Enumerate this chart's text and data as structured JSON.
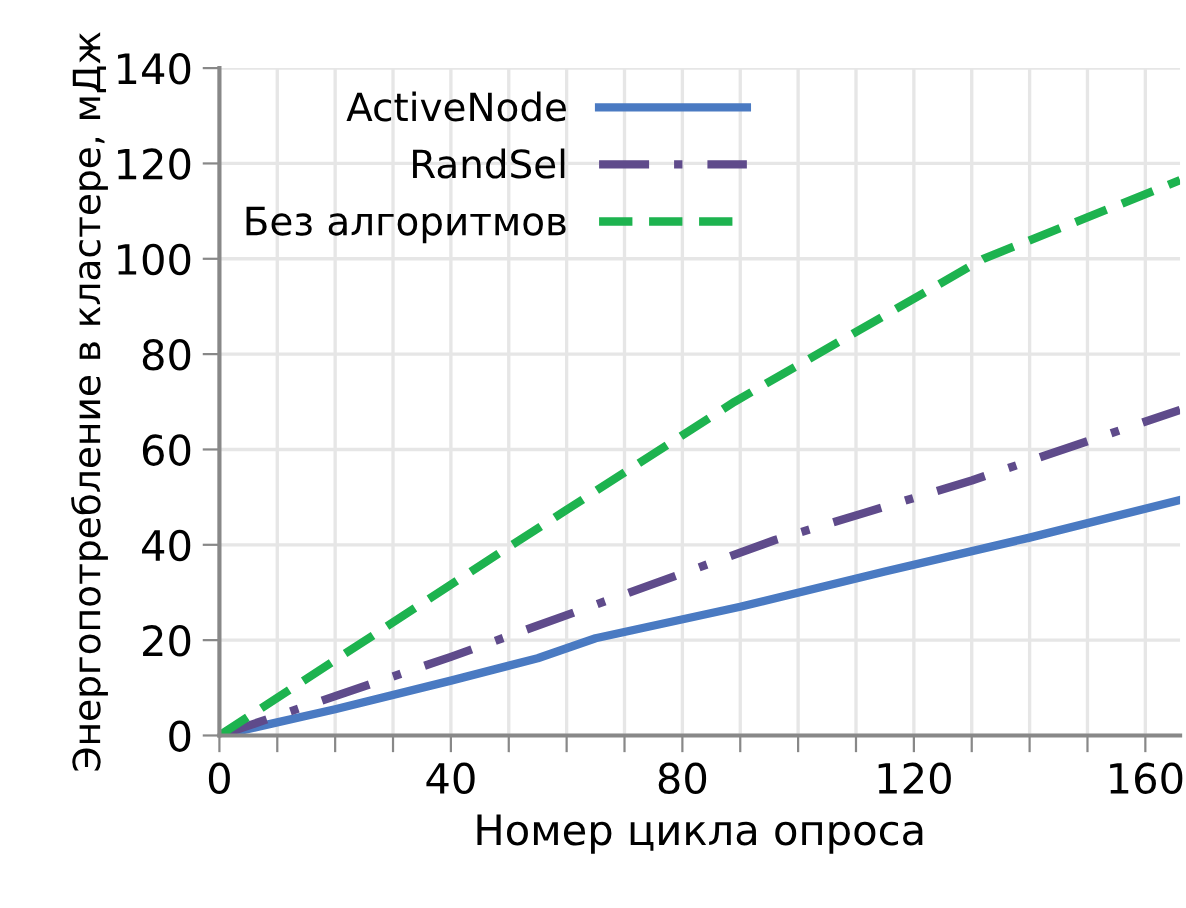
{
  "chart_data": {
    "type": "line",
    "xlabel": "Номер цикла опроса",
    "ylabel": "Энергопотребление в кластере, мДж",
    "xlim": [
      0,
      166
    ],
    "ylim": [
      0,
      140
    ],
    "xticks": [
      0,
      {
        "value": 10,
        "label": null
      },
      {
        "value": 20,
        "label": null
      },
      {
        "value": 30,
        "label": null
      },
      40,
      {
        "value": 50,
        "label": null
      },
      {
        "value": 60,
        "label": null
      },
      {
        "value": 70,
        "label": null
      },
      80,
      {
        "value": 90,
        "label": null
      },
      {
        "value": 100,
        "label": null
      },
      {
        "value": 110,
        "label": null
      },
      120,
      {
        "value": 130,
        "label": null
      },
      {
        "value": 140,
        "label": null
      },
      {
        "value": 150,
        "label": null
      },
      160
    ],
    "yticks": [
      0,
      20,
      40,
      60,
      80,
      100,
      120,
      140
    ],
    "grid": true,
    "legend": "top left",
    "series": [
      {
        "name": "ActiveNode",
        "color": "#4a7ac2",
        "line_style": "solid",
        "x": [
          0,
          20,
          40,
          55,
          65,
          90,
          115,
          140,
          166
        ],
        "values": [
          0,
          5.5,
          11.5,
          16.2,
          20.4,
          27,
          34.4,
          41.5,
          49.4
        ]
      },
      {
        "name": "RandSel",
        "color": "#5f4b8b",
        "line_style": "dashdot",
        "x": [
          0,
          40,
          96,
          130,
          166
        ],
        "values": [
          0,
          16.5,
          41,
          53.5,
          68.3
        ]
      },
      {
        "name": "Без алгоритмов",
        "color": "#1db34f",
        "line_style": "dashed",
        "x": [
          0,
          48.8,
          89,
          132,
          163,
          166
        ],
        "values": [
          0,
          38.6,
          70,
          100,
          115,
          116.5
        ]
      }
    ]
  }
}
